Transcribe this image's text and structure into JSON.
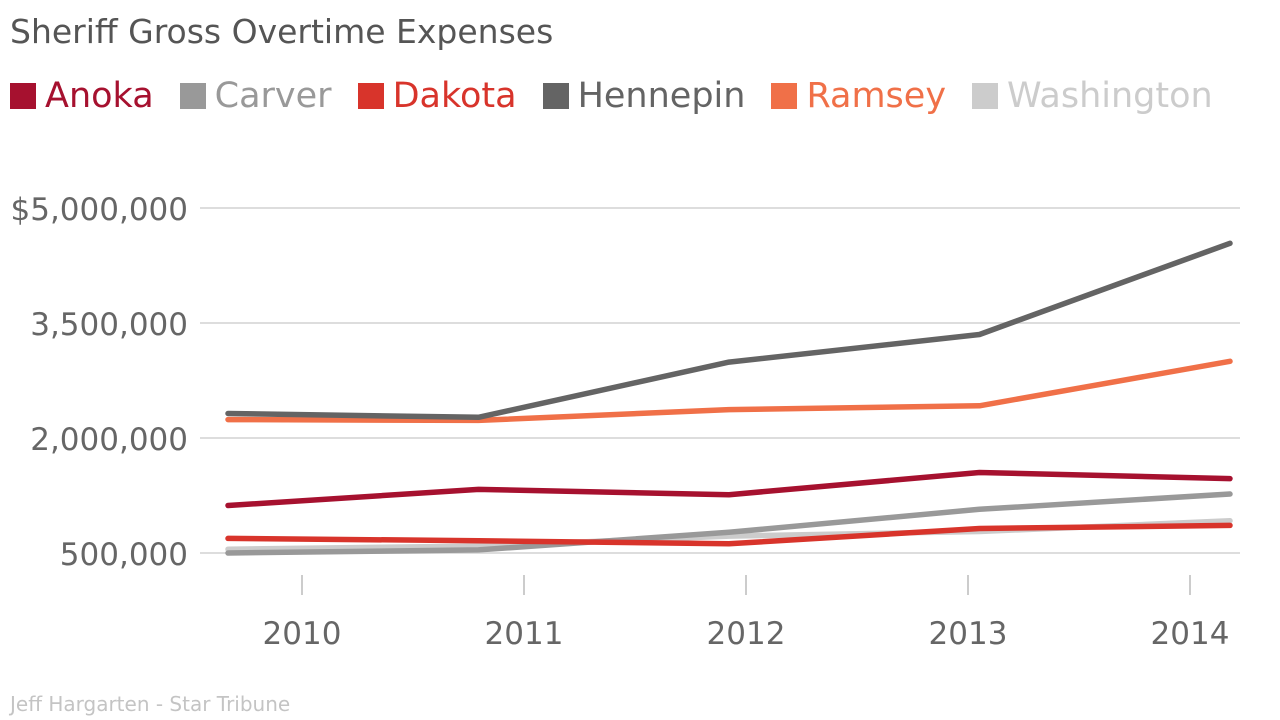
{
  "chart_data": {
    "type": "line",
    "title": "Sheriff Gross Overtime Expenses",
    "xlabel": "",
    "ylabel": "",
    "x": [
      "2010",
      "2011",
      "2012",
      "2013",
      "2014"
    ],
    "y_ticks": [
      500000,
      2000000,
      3500000,
      5000000
    ],
    "y_tick_labels": [
      "500,000",
      "2,000,000",
      "3,500,000",
      "$5,000,000"
    ],
    "ylim": [
      500000,
      5000000
    ],
    "grid": true,
    "legend_position": "top-left",
    "series": [
      {
        "name": "Anoka",
        "color": "#a6112f",
        "values": [
          1120000,
          1330000,
          1260000,
          1550000,
          1470000
        ]
      },
      {
        "name": "Carver",
        "color": "#999999",
        "values": [
          500000,
          540000,
          770000,
          1070000,
          1270000
        ]
      },
      {
        "name": "Dakota",
        "color": "#d8342b",
        "values": [
          690000,
          660000,
          620000,
          820000,
          860000
        ]
      },
      {
        "name": "Hennepin",
        "color": "#646464",
        "values": [
          2320000,
          2270000,
          2990000,
          3350000,
          4540000
        ]
      },
      {
        "name": "Ramsey",
        "color": "#f07048",
        "values": [
          2240000,
          2230000,
          2370000,
          2420000,
          3000000
        ]
      },
      {
        "name": "Washington",
        "color": "#cccccc",
        "values": [
          550000,
          590000,
          720000,
          780000,
          920000
        ]
      }
    ]
  },
  "source_credit": "Jeff Hargarten - Star Tribune"
}
